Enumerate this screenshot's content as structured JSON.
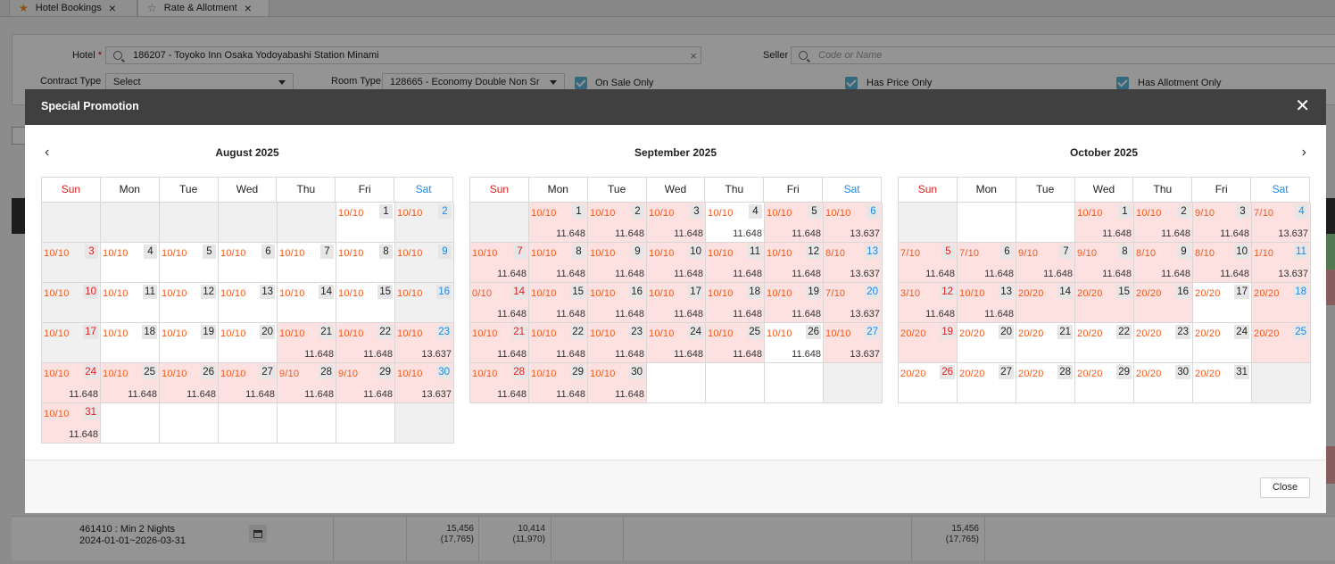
{
  "tabs": [
    {
      "label": "Hotel Bookings"
    },
    {
      "label": "Rate & Allotment"
    }
  ],
  "filters": {
    "hotel_label": "Hotel",
    "hotel_required_mark": "*",
    "hotel_value": "186207 - Toyoko Inn Osaka Yodoyabashi Station Minami",
    "seller_label": "Seller",
    "seller_placeholder": "Code or Name",
    "contract_type_label": "Contract Type",
    "contract_type_value": "Select",
    "room_type_label": "Room Type",
    "room_type_value": "128665 - Economy Double Non Sr",
    "on_sale_only_label": "On Sale Only",
    "has_price_only_label": "Has Price Only",
    "has_allotment_only_label": "Has Allotment Only"
  },
  "background_row": {
    "name": "461410 : Min 2 Nights",
    "period": "2024-01-01~2026-03-31",
    "cells": [
      {
        "top": "15,456",
        "bottom": "(17,765)"
      },
      {
        "top": "10,414",
        "bottom": "(11,970)"
      },
      {
        "top": "15,456",
        "bottom": "(17,765)"
      }
    ]
  },
  "modal": {
    "title": "Special Promotion",
    "close_label": "Close",
    "weekdays": [
      "Sun",
      "Mon",
      "Tue",
      "Wed",
      "Thu",
      "Fri",
      "Sat"
    ],
    "months": [
      {
        "title": "August 2025",
        "cells": [
          {
            "d": null
          },
          {
            "d": null
          },
          {
            "d": null
          },
          {
            "d": null
          },
          {
            "d": null
          },
          {
            "d": "1",
            "a": "10/10"
          },
          {
            "d": "2",
            "a": "10/10"
          },
          {
            "d": "3",
            "a": "10/10"
          },
          {
            "d": "4",
            "a": "10/10"
          },
          {
            "d": "5",
            "a": "10/10"
          },
          {
            "d": "6",
            "a": "10/10"
          },
          {
            "d": "7",
            "a": "10/10"
          },
          {
            "d": "8",
            "a": "10/10"
          },
          {
            "d": "9",
            "a": "10/10"
          },
          {
            "d": "10",
            "a": "10/10"
          },
          {
            "d": "11",
            "a": "10/10"
          },
          {
            "d": "12",
            "a": "10/10"
          },
          {
            "d": "13",
            "a": "10/10"
          },
          {
            "d": "14",
            "a": "10/10"
          },
          {
            "d": "15",
            "a": "10/10"
          },
          {
            "d": "16",
            "a": "10/10"
          },
          {
            "d": "17",
            "a": "10/10"
          },
          {
            "d": "18",
            "a": "10/10"
          },
          {
            "d": "19",
            "a": "10/10"
          },
          {
            "d": "20",
            "a": "10/10"
          },
          {
            "d": "21",
            "a": "10/10",
            "p": "11.648"
          },
          {
            "d": "22",
            "a": "10/10",
            "p": "11.648"
          },
          {
            "d": "23",
            "a": "10/10",
            "p": "13.637"
          },
          {
            "d": "24",
            "a": "10/10",
            "p": "11.648"
          },
          {
            "d": "25",
            "a": "10/10",
            "p": "11.648"
          },
          {
            "d": "26",
            "a": "10/10",
            "p": "11.648"
          },
          {
            "d": "27",
            "a": "10/10",
            "p": "11.648"
          },
          {
            "d": "28",
            "a": "9/10",
            "p": "11.648"
          },
          {
            "d": "29",
            "a": "9/10",
            "p": "11.648"
          },
          {
            "d": "30",
            "a": "10/10",
            "p": "13.637"
          },
          {
            "d": "31",
            "a": "10/10",
            "p": "11.648"
          },
          {
            "d": null,
            "w": true
          },
          {
            "d": null,
            "w": true
          },
          {
            "d": null,
            "w": true
          },
          {
            "d": null,
            "w": true
          },
          {
            "d": null,
            "w": true
          },
          {
            "d": null
          }
        ]
      },
      {
        "title": "September 2025",
        "cells": [
          {
            "d": null
          },
          {
            "d": "1",
            "a": "10/10",
            "p": "11.648"
          },
          {
            "d": "2",
            "a": "10/10",
            "p": "11.648"
          },
          {
            "d": "3",
            "a": "10/10",
            "p": "11.648"
          },
          {
            "d": "4",
            "a": "10/10",
            "p": "11.648",
            "plain": true
          },
          {
            "d": "5",
            "a": "10/10",
            "p": "11.648"
          },
          {
            "d": "6",
            "a": "10/10",
            "p": "13.637"
          },
          {
            "d": "7",
            "a": "10/10",
            "p": "11.648"
          },
          {
            "d": "8",
            "a": "10/10",
            "p": "11.648"
          },
          {
            "d": "9",
            "a": "10/10",
            "p": "11.648"
          },
          {
            "d": "10",
            "a": "10/10",
            "p": "11.648"
          },
          {
            "d": "11",
            "a": "10/10",
            "p": "11.648"
          },
          {
            "d": "12",
            "a": "10/10",
            "p": "11.648"
          },
          {
            "d": "13",
            "a": "8/10",
            "p": "13.637"
          },
          {
            "d": "14",
            "a": "0/10",
            "p": "11.648"
          },
          {
            "d": "15",
            "a": "10/10",
            "p": "11.648"
          },
          {
            "d": "16",
            "a": "10/10",
            "p": "11.648"
          },
          {
            "d": "17",
            "a": "10/10",
            "p": "11.648"
          },
          {
            "d": "18",
            "a": "10/10",
            "p": "11.648"
          },
          {
            "d": "19",
            "a": "10/10",
            "p": "11.648"
          },
          {
            "d": "20",
            "a": "7/10",
            "p": "13.637"
          },
          {
            "d": "21",
            "a": "10/10",
            "p": "11.648"
          },
          {
            "d": "22",
            "a": "10/10",
            "p": "11.648"
          },
          {
            "d": "23",
            "a": "10/10",
            "p": "11.648"
          },
          {
            "d": "24",
            "a": "10/10",
            "p": "11.648"
          },
          {
            "d": "25",
            "a": "10/10",
            "p": "11.648"
          },
          {
            "d": "26",
            "a": "10/10",
            "p": "11.648",
            "plain": true
          },
          {
            "d": "27",
            "a": "10/10",
            "p": "13.637"
          },
          {
            "d": "28",
            "a": "10/10",
            "p": "11.648"
          },
          {
            "d": "29",
            "a": "10/10",
            "p": "11.648"
          },
          {
            "d": "30",
            "a": "10/10",
            "p": "11.648"
          },
          {
            "d": null,
            "w": true
          },
          {
            "d": null,
            "w": true
          },
          {
            "d": null,
            "w": true
          },
          {
            "d": null
          }
        ]
      },
      {
        "title": "October 2025",
        "cells": [
          {
            "d": null
          },
          {
            "d": null,
            "w": true
          },
          {
            "d": null,
            "w": true
          },
          {
            "d": "1",
            "a": "10/10",
            "p": "11.648"
          },
          {
            "d": "2",
            "a": "10/10",
            "p": "11.648"
          },
          {
            "d": "3",
            "a": "9/10",
            "p": "11.648"
          },
          {
            "d": "4",
            "a": "7/10",
            "p": "13.637"
          },
          {
            "d": "5",
            "a": "7/10",
            "p": "11.648"
          },
          {
            "d": "6",
            "a": "7/10",
            "p": "11.648"
          },
          {
            "d": "7",
            "a": "9/10",
            "p": "11.648"
          },
          {
            "d": "8",
            "a": "9/10",
            "p": "11.648"
          },
          {
            "d": "9",
            "a": "8/10",
            "p": "11.648"
          },
          {
            "d": "10",
            "a": "8/10",
            "p": "11.648"
          },
          {
            "d": "11",
            "a": "1/10",
            "p": "13.637"
          },
          {
            "d": "12",
            "a": "3/10",
            "p": "11.648"
          },
          {
            "d": "13",
            "a": "10/10",
            "p": "11.648"
          },
          {
            "d": "14",
            "a": "20/20",
            "promo": true
          },
          {
            "d": "15",
            "a": "20/20",
            "promo": true
          },
          {
            "d": "16",
            "a": "20/20",
            "promo": true
          },
          {
            "d": "17",
            "a": "20/20",
            "plain": true
          },
          {
            "d": "18",
            "a": "20/20",
            "promo": true
          },
          {
            "d": "19",
            "a": "20/20",
            "promo": true
          },
          {
            "d": "20",
            "a": "20/20",
            "plain": true
          },
          {
            "d": "21",
            "a": "20/20",
            "plain": true
          },
          {
            "d": "22",
            "a": "20/20",
            "plain": true
          },
          {
            "d": "23",
            "a": "20/20",
            "plain": true
          },
          {
            "d": "24",
            "a": "20/20",
            "plain": true
          },
          {
            "d": "25",
            "a": "20/20",
            "promo": true
          },
          {
            "d": "26",
            "a": "20/20",
            "plain": true
          },
          {
            "d": "27",
            "a": "20/20",
            "plain": true
          },
          {
            "d": "28",
            "a": "20/20",
            "plain": true
          },
          {
            "d": "29",
            "a": "20/20",
            "plain": true
          },
          {
            "d": "30",
            "a": "20/20",
            "plain": true
          },
          {
            "d": "31",
            "a": "20/20",
            "plain": true
          },
          {
            "d": null
          }
        ]
      }
    ]
  }
}
